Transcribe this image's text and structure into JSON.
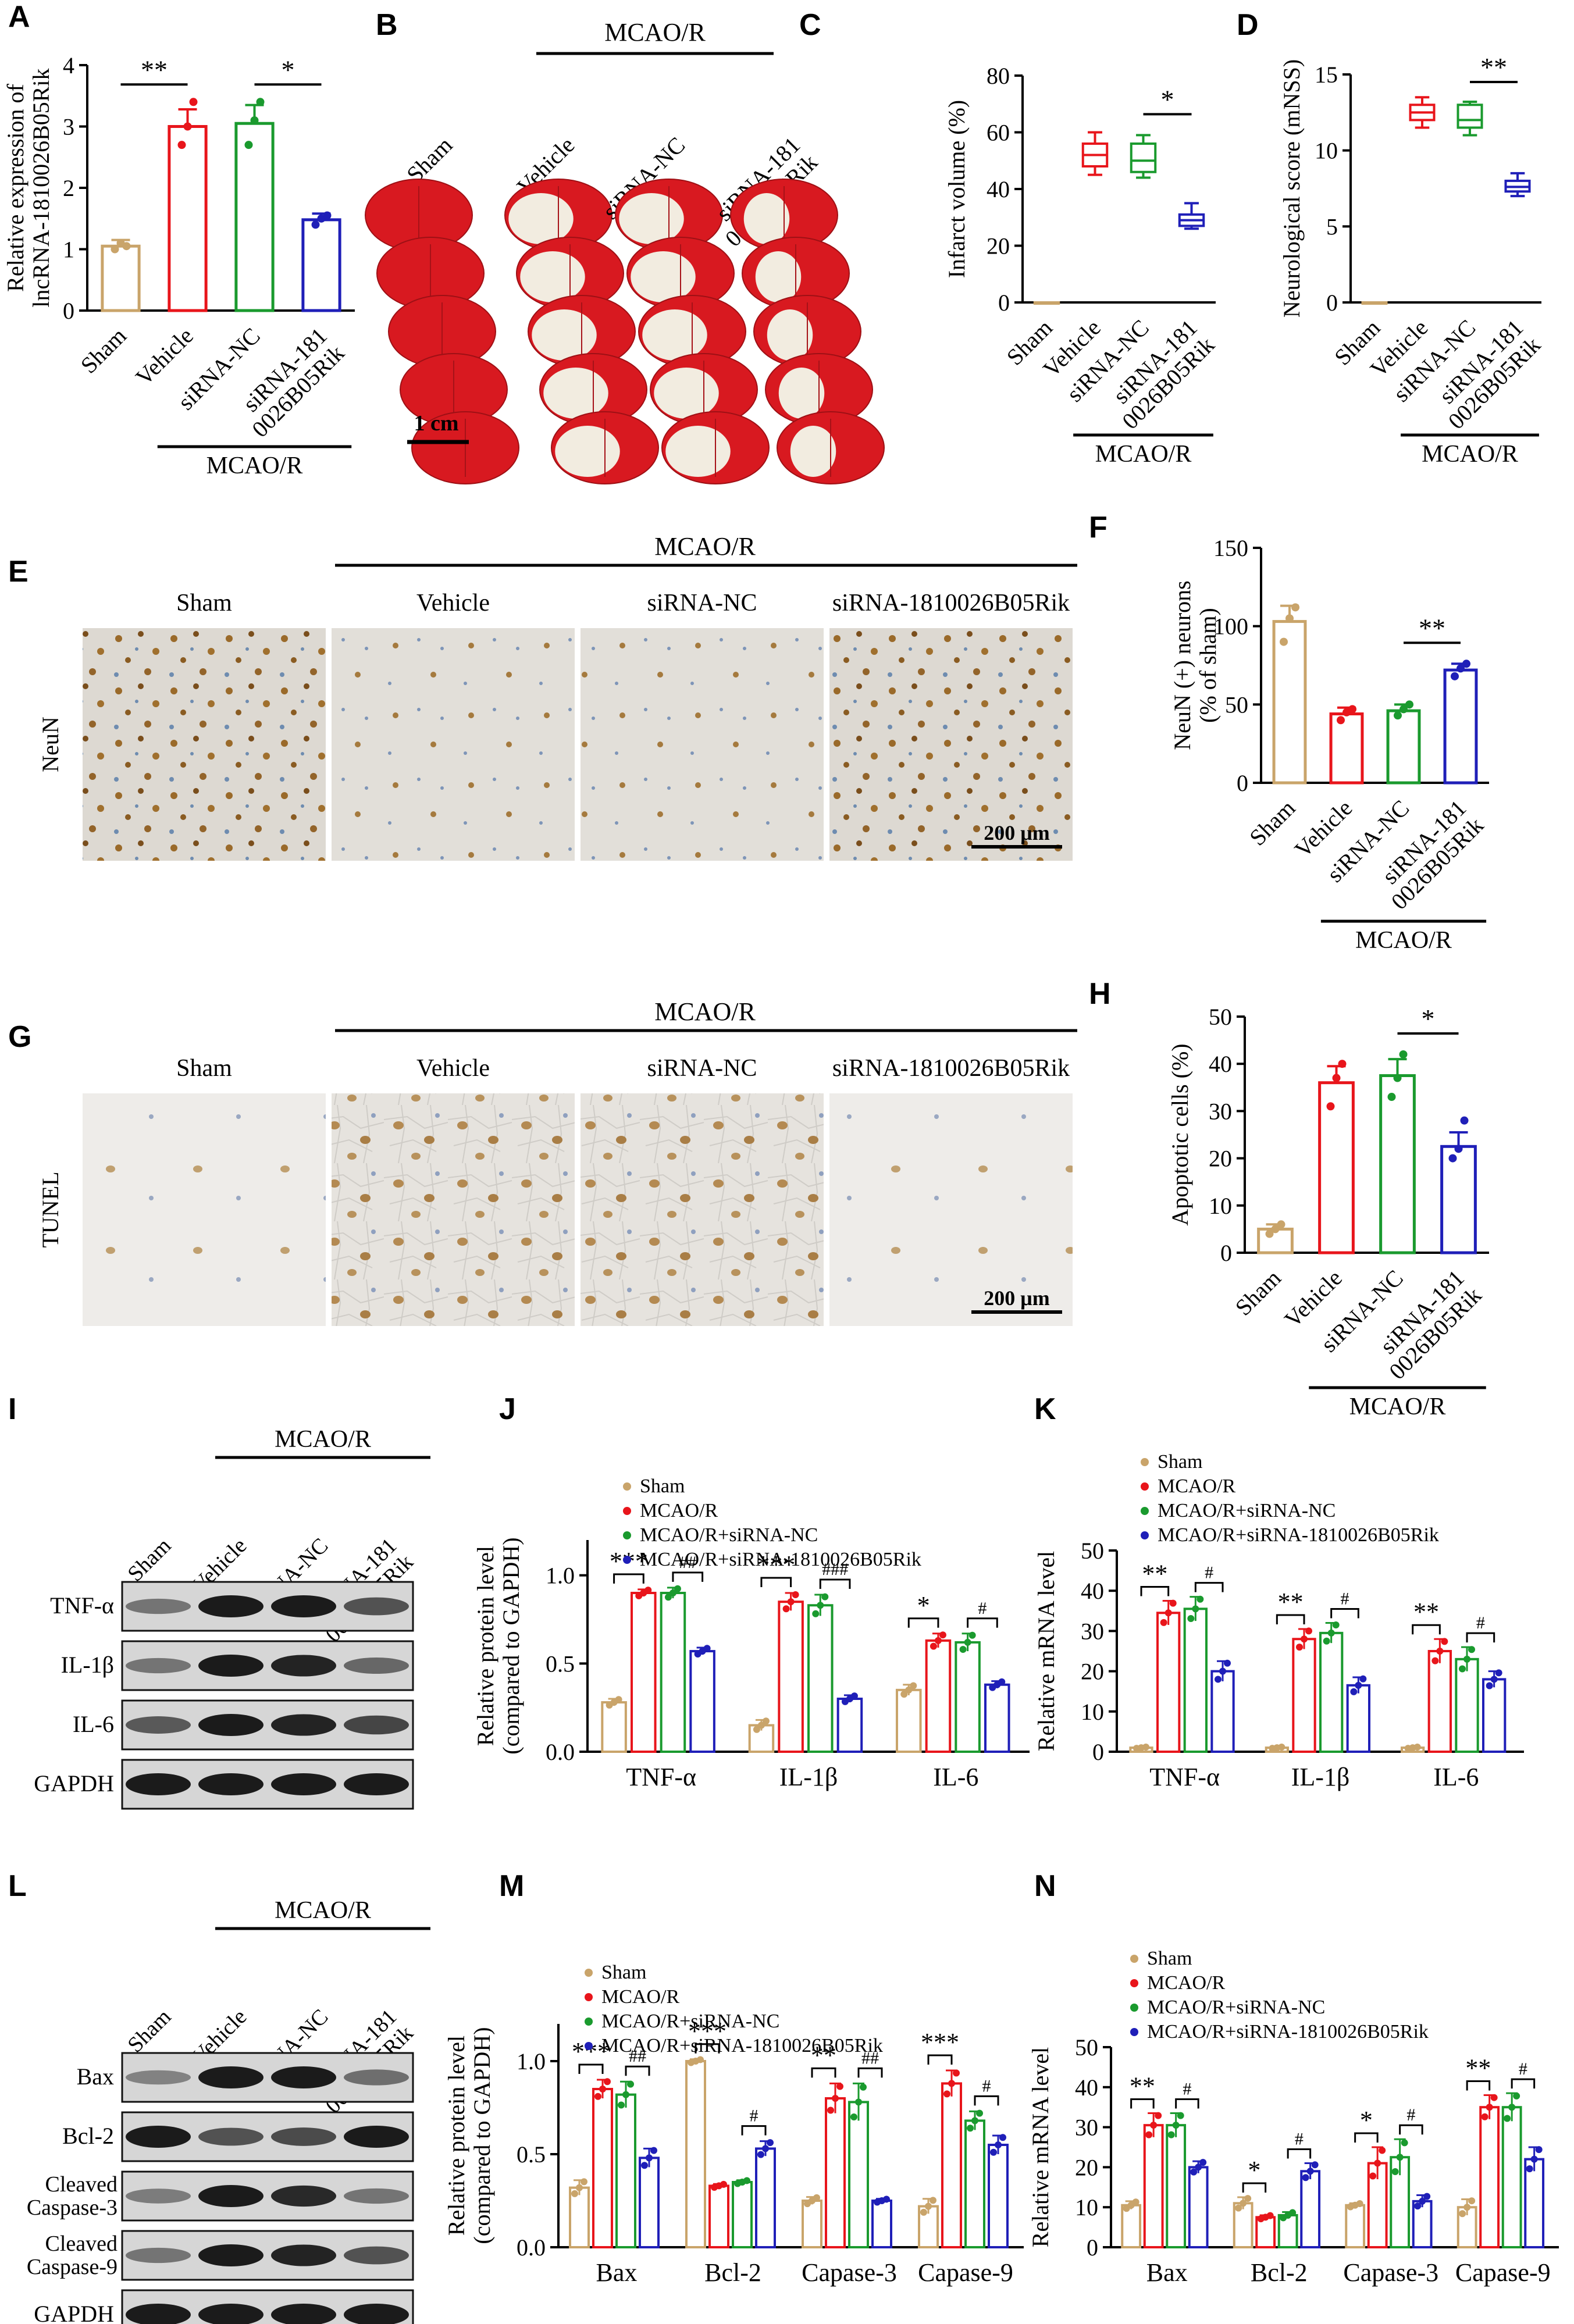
{
  "colors": {
    "sham": "#c9a46a",
    "vehicle": "#e8151b",
    "nc": "#1a9a2e",
    "si": "#1f1fb8"
  },
  "mcaor": "MCAO/R",
  "tissue_groups": [
    "Sham",
    "Vehicle",
    "siRNA-NC",
    "siRNA-1810026B05Rik"
  ],
  "wb_lanes": [
    "Sham",
    "Vehicle",
    "siRNA-NC",
    "siRNA-181 0026B05Rik"
  ],
  "panels": {
    "A": {
      "letter": "A",
      "ylabel": [
        "Relative expression of",
        "lncRNA-1810026B05Rik"
      ]
    },
    "B": {
      "letter": "B",
      "scalebar": "1 cm"
    },
    "C": {
      "letter": "C"
    },
    "D": {
      "letter": "D"
    },
    "E": {
      "letter": "E",
      "stain": "NeuN",
      "scalebar": "200 μm"
    },
    "F": {
      "letter": "F"
    },
    "G": {
      "letter": "G",
      "stain": "TUNEL",
      "scalebar": "200 μm"
    },
    "H": {
      "letter": "H"
    },
    "I": {
      "letter": "I",
      "rows": [
        "TNF-α",
        "IL-1β",
        "IL-6",
        "GAPDH"
      ]
    },
    "J": {
      "letter": "J"
    },
    "K": {
      "letter": "K"
    },
    "L": {
      "letter": "L",
      "rows": [
        "Bax",
        "Bcl-2",
        "Cleaved Caspase-3",
        "Cleaved Caspase-9",
        "GAPDH"
      ]
    },
    "M": {
      "letter": "M"
    },
    "N": {
      "letter": "N"
    }
  },
  "chart_data": [
    {
      "id": "A",
      "type": "bar",
      "categories": [
        "Sham",
        "Vehicle",
        "siRNA-NC",
        "siRNA-181 0026B05Rik"
      ],
      "values": [
        1.05,
        3.0,
        3.05,
        1.48
      ],
      "errors": [
        0.1,
        0.28,
        0.3,
        0.1
      ],
      "points": [
        [
          1.0,
          1.1,
          1.05
        ],
        [
          2.7,
          3.0,
          3.4
        ],
        [
          2.7,
          3.1,
          3.4
        ],
        [
          1.4,
          1.5,
          1.55
        ]
      ],
      "ylim": [
        0,
        4
      ],
      "yticks": [
        0,
        1,
        2,
        3,
        4
      ],
      "ylabel": "Relative expression of lncRNA-1810026B05Rik",
      "significance": [
        {
          "from": 0,
          "to": 1,
          "label": "**"
        },
        {
          "from": 2,
          "to": 3,
          "label": "*"
        }
      ],
      "group_label": "MCAO/R"
    },
    {
      "id": "C",
      "type": "box",
      "categories": [
        "Sham",
        "Vehicle",
        "siRNA-NC",
        "siRNA-181 0026B05Rik"
      ],
      "boxes": [
        [
          0,
          0,
          0,
          0,
          0
        ],
        [
          45,
          48,
          52,
          56,
          60
        ],
        [
          44,
          46,
          50,
          56,
          59
        ],
        [
          26,
          27,
          29,
          31,
          35
        ]
      ],
      "ylim": [
        0,
        80
      ],
      "yticks": [
        0,
        20,
        40,
        60,
        80
      ],
      "ylabel": "Infarct volume (%)",
      "significance": [
        {
          "from": 2,
          "to": 3,
          "label": "*"
        }
      ],
      "group_label": "MCAO/R"
    },
    {
      "id": "D",
      "type": "box",
      "categories": [
        "Sham",
        "Vehicle",
        "siRNA-NC",
        "siRNA-181 0026B05Rik"
      ],
      "boxes": [
        [
          0,
          0,
          0,
          0,
          0
        ],
        [
          11.5,
          12.0,
          12.5,
          13.0,
          13.5
        ],
        [
          11.0,
          11.5,
          12.0,
          13.0,
          13.2
        ],
        [
          7.0,
          7.3,
          7.6,
          8.0,
          8.5
        ]
      ],
      "ylim": [
        0,
        15
      ],
      "yticks": [
        0,
        5,
        10,
        15
      ],
      "ylabel": "Neurological score (mNSS)",
      "significance": [
        {
          "from": 2,
          "to": 3,
          "label": "**"
        }
      ],
      "group_label": "MCAO/R"
    },
    {
      "id": "F",
      "type": "bar",
      "categories": [
        "Sham",
        "Vehicle",
        "siRNA-NC",
        "siRNA-181 0026B05Rik"
      ],
      "values": [
        103,
        44,
        46,
        72
      ],
      "errors": [
        10,
        4,
        4,
        4
      ],
      "points": [
        [
          90,
          105,
          112
        ],
        [
          40,
          45,
          47
        ],
        [
          43,
          47,
          50
        ],
        [
          68,
          73,
          76
        ]
      ],
      "ylim": [
        0,
        150
      ],
      "yticks": [
        0,
        50,
        100,
        150
      ],
      "ylabel": "NeuN (+) neurons (% of sham)",
      "significance": [
        {
          "from": 2,
          "to": 3,
          "label": "**"
        }
      ],
      "group_label": "MCAO/R"
    },
    {
      "id": "H",
      "type": "bar",
      "categories": [
        "Sham",
        "Vehicle",
        "siRNA-NC",
        "siRNA-181 0026B05Rik"
      ],
      "values": [
        5,
        36,
        37.5,
        22.5
      ],
      "errors": [
        1,
        3.5,
        3.5,
        3
      ],
      "points": [
        [
          4,
          5,
          6
        ],
        [
          31,
          37,
          40
        ],
        [
          33,
          37,
          42
        ],
        [
          20,
          22,
          28
        ]
      ],
      "ylim": [
        0,
        50
      ],
      "yticks": [
        0,
        10,
        20,
        30,
        40,
        50
      ],
      "ylabel": "Apoptotic cells (%)",
      "significance": [
        {
          "from": 2,
          "to": 3,
          "label": "*"
        }
      ],
      "group_label": "MCAO/R"
    },
    {
      "id": "J",
      "type": "grouped-bar",
      "categories": [
        "TNF-α",
        "IL-1β",
        "IL-6"
      ],
      "series": [
        {
          "name": "Sham",
          "values": [
            0.28,
            0.15,
            0.35
          ]
        },
        {
          "name": "MCAO/R",
          "values": [
            0.9,
            0.85,
            0.63
          ]
        },
        {
          "name": "MCAO/R+siRNA-NC",
          "values": [
            0.9,
            0.83,
            0.62
          ]
        },
        {
          "name": "MCAO/R+siRNA-1810026B05Rik",
          "values": [
            0.57,
            0.3,
            0.38
          ]
        }
      ],
      "errors": [
        [
          0.02,
          0.02,
          0.03,
          0.02
        ],
        [
          0.03,
          0.05,
          0.06,
          0.02
        ],
        [
          0.03,
          0.04,
          0.05,
          0.02
        ]
      ],
      "ylim": [
        0,
        1.2
      ],
      "yticks": [
        0.0,
        0.5,
        1.0
      ],
      "ylabel": "Relative protein level (compared to GAPDH)",
      "significance": [
        {
          "cat": 0,
          "from": 0,
          "to": 1,
          "label": "***"
        },
        {
          "cat": 0,
          "from": 2,
          "to": 3,
          "label": "##"
        },
        {
          "cat": 1,
          "from": 0,
          "to": 1,
          "label": "***"
        },
        {
          "cat": 1,
          "from": 2,
          "to": 3,
          "label": "###"
        },
        {
          "cat": 2,
          "from": 0,
          "to": 1,
          "label": "*"
        },
        {
          "cat": 2,
          "from": 2,
          "to": 3,
          "label": "#"
        }
      ]
    },
    {
      "id": "K",
      "type": "grouped-bar",
      "categories": [
        "TNF-α",
        "IL-1β",
        "IL-6"
      ],
      "series": [
        {
          "name": "Sham",
          "values": [
            1,
            1,
            1
          ]
        },
        {
          "name": "MCAO/R",
          "values": [
            34.5,
            28,
            25
          ]
        },
        {
          "name": "MCAO/R+siRNA-NC",
          "values": [
            35.5,
            29.5,
            23
          ]
        },
        {
          "name": "MCAO/R+siRNA-1810026B05Rik",
          "values": [
            20,
            16.5,
            18
          ]
        }
      ],
      "errors": [
        [
          0.2,
          3,
          3,
          2.5
        ],
        [
          0.2,
          2.5,
          2.5,
          2
        ],
        [
          0.2,
          3,
          3,
          2
        ]
      ],
      "ylim": [
        0,
        50
      ],
      "yticks": [
        0,
        10,
        20,
        30,
        40,
        50
      ],
      "ylabel": "Relative mRNA level",
      "significance": [
        {
          "cat": 0,
          "from": 0,
          "to": 1,
          "label": "**"
        },
        {
          "cat": 0,
          "from": 2,
          "to": 3,
          "label": "#"
        },
        {
          "cat": 1,
          "from": 0,
          "to": 1,
          "label": "**"
        },
        {
          "cat": 1,
          "from": 2,
          "to": 3,
          "label": "#"
        },
        {
          "cat": 2,
          "from": 0,
          "to": 1,
          "label": "**"
        },
        {
          "cat": 2,
          "from": 2,
          "to": 3,
          "label": "#"
        }
      ]
    },
    {
      "id": "M",
      "type": "grouped-bar",
      "categories": [
        "Bax",
        "Bcl-2",
        "Capase-3",
        "Capase-9"
      ],
      "series": [
        {
          "name": "Sham",
          "values": [
            0.32,
            1.0,
            0.25,
            0.22
          ]
        },
        {
          "name": "MCAO/R",
          "values": [
            0.85,
            0.33,
            0.8,
            0.88
          ]
        },
        {
          "name": "MCAO/R+siRNA-NC",
          "values": [
            0.82,
            0.35,
            0.78,
            0.68
          ]
        },
        {
          "name": "MCAO/R+siRNA-1810026B05Rik",
          "values": [
            0.48,
            0.53,
            0.25,
            0.55
          ]
        }
      ],
      "errors": [
        [
          0.04,
          0.05,
          0.07,
          0.05
        ],
        [
          0.01,
          0.01,
          0.01,
          0.04
        ],
        [
          0.02,
          0.08,
          0.1,
          0.01
        ],
        [
          0.04,
          0.07,
          0.05,
          0.05
        ]
      ],
      "ylim": [
        0,
        1.2
      ],
      "yticks": [
        0.0,
        0.5,
        1.0
      ],
      "ylabel": "Relative protein level (compared to GAPDH)",
      "significance": [
        {
          "cat": 0,
          "from": 0,
          "to": 1,
          "label": "***"
        },
        {
          "cat": 0,
          "from": 2,
          "to": 3,
          "label": "##"
        },
        {
          "cat": 1,
          "from": 0,
          "to": 1,
          "label": "***"
        },
        {
          "cat": 1,
          "from": 2,
          "to": 3,
          "label": "#"
        },
        {
          "cat": 2,
          "from": 0,
          "to": 1,
          "label": "**"
        },
        {
          "cat": 2,
          "from": 2,
          "to": 3,
          "label": "##"
        },
        {
          "cat": 3,
          "from": 0,
          "to": 1,
          "label": "***"
        },
        {
          "cat": 3,
          "from": 2,
          "to": 3,
          "label": "#"
        }
      ]
    },
    {
      "id": "N",
      "type": "grouped-bar",
      "categories": [
        "Bax",
        "Bcl-2",
        "Capase-3",
        "Capase-9"
      ],
      "series": [
        {
          "name": "Sham",
          "values": [
            10.5,
            11,
            10.5,
            10
          ]
        },
        {
          "name": "MCAO/R",
          "values": [
            30.5,
            7.5,
            21,
            35
          ]
        },
        {
          "name": "MCAO/R+siRNA-NC",
          "values": [
            30.5,
            8,
            22.5,
            35
          ]
        },
        {
          "name": "MCAO/R+siRNA-1810026B05Rik",
          "values": [
            20,
            19,
            11.5,
            22
          ]
        }
      ],
      "errors": [
        [
          1,
          3,
          3,
          1.5
        ],
        [
          1.5,
          0.5,
          0.8,
          2
        ],
        [
          0.5,
          4,
          4.5,
          1.5
        ],
        [
          2,
          3,
          3.5,
          3
        ]
      ],
      "ylim": [
        0,
        50
      ],
      "yticks": [
        0,
        10,
        20,
        30,
        40,
        50
      ],
      "ylabel": "Relative mRNA level",
      "significance": [
        {
          "cat": 0,
          "from": 0,
          "to": 1,
          "label": "**"
        },
        {
          "cat": 0,
          "from": 2,
          "to": 3,
          "label": "#"
        },
        {
          "cat": 1,
          "from": 0,
          "to": 1,
          "label": "*"
        },
        {
          "cat": 1,
          "from": 2,
          "to": 3,
          "label": "#"
        },
        {
          "cat": 2,
          "from": 0,
          "to": 1,
          "label": "*"
        },
        {
          "cat": 2,
          "from": 2,
          "to": 3,
          "label": "#"
        },
        {
          "cat": 3,
          "from": 0,
          "to": 1,
          "label": "**"
        },
        {
          "cat": 3,
          "from": 2,
          "to": 3,
          "label": "#"
        }
      ]
    }
  ]
}
